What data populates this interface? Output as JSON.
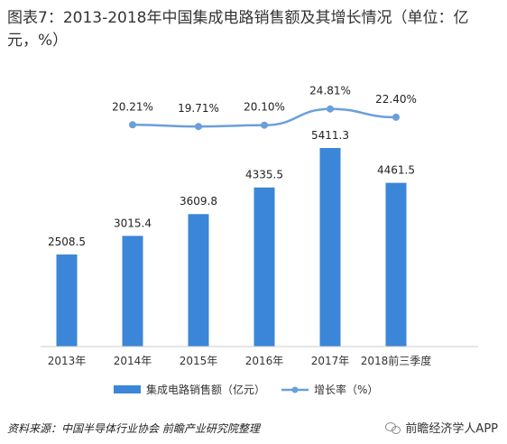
{
  "title": "图表7：2013-2018年中国集成电路销售额及其增长情况（单位：亿元，%）",
  "source": "资料来源：中国半导体行业协会 前瞻产业研究院整理",
  "brand": "前瞻经济学人APP",
  "colors": {
    "bar": "#3b86d8",
    "line": "#6a9fdc",
    "text": "#333333"
  },
  "chart_data": {
    "type": "bar",
    "categories": [
      "2013年",
      "2014年",
      "2015年",
      "2016年",
      "2017年",
      "2018前三季度"
    ],
    "series": [
      {
        "name": "集成电路销售额（亿元）",
        "type": "bar",
        "values": [
          2508.5,
          3015.4,
          3609.8,
          4335.5,
          5411.3,
          4461.5
        ],
        "labels": [
          "2508.5",
          "3015.4",
          "3609.8",
          "4335.5",
          "5411.3",
          "4461.5"
        ]
      },
      {
        "name": "增长率（%）",
        "type": "line",
        "values": [
          null,
          20.21,
          19.71,
          20.1,
          24.81,
          22.4
        ],
        "labels": [
          "",
          "20.21%",
          "19.71%",
          "20.10%",
          "24.81%",
          "22.40%"
        ]
      }
    ],
    "ylim": [
      0,
      5411.3
    ],
    "legend_position": "bottom",
    "grid": false
  }
}
